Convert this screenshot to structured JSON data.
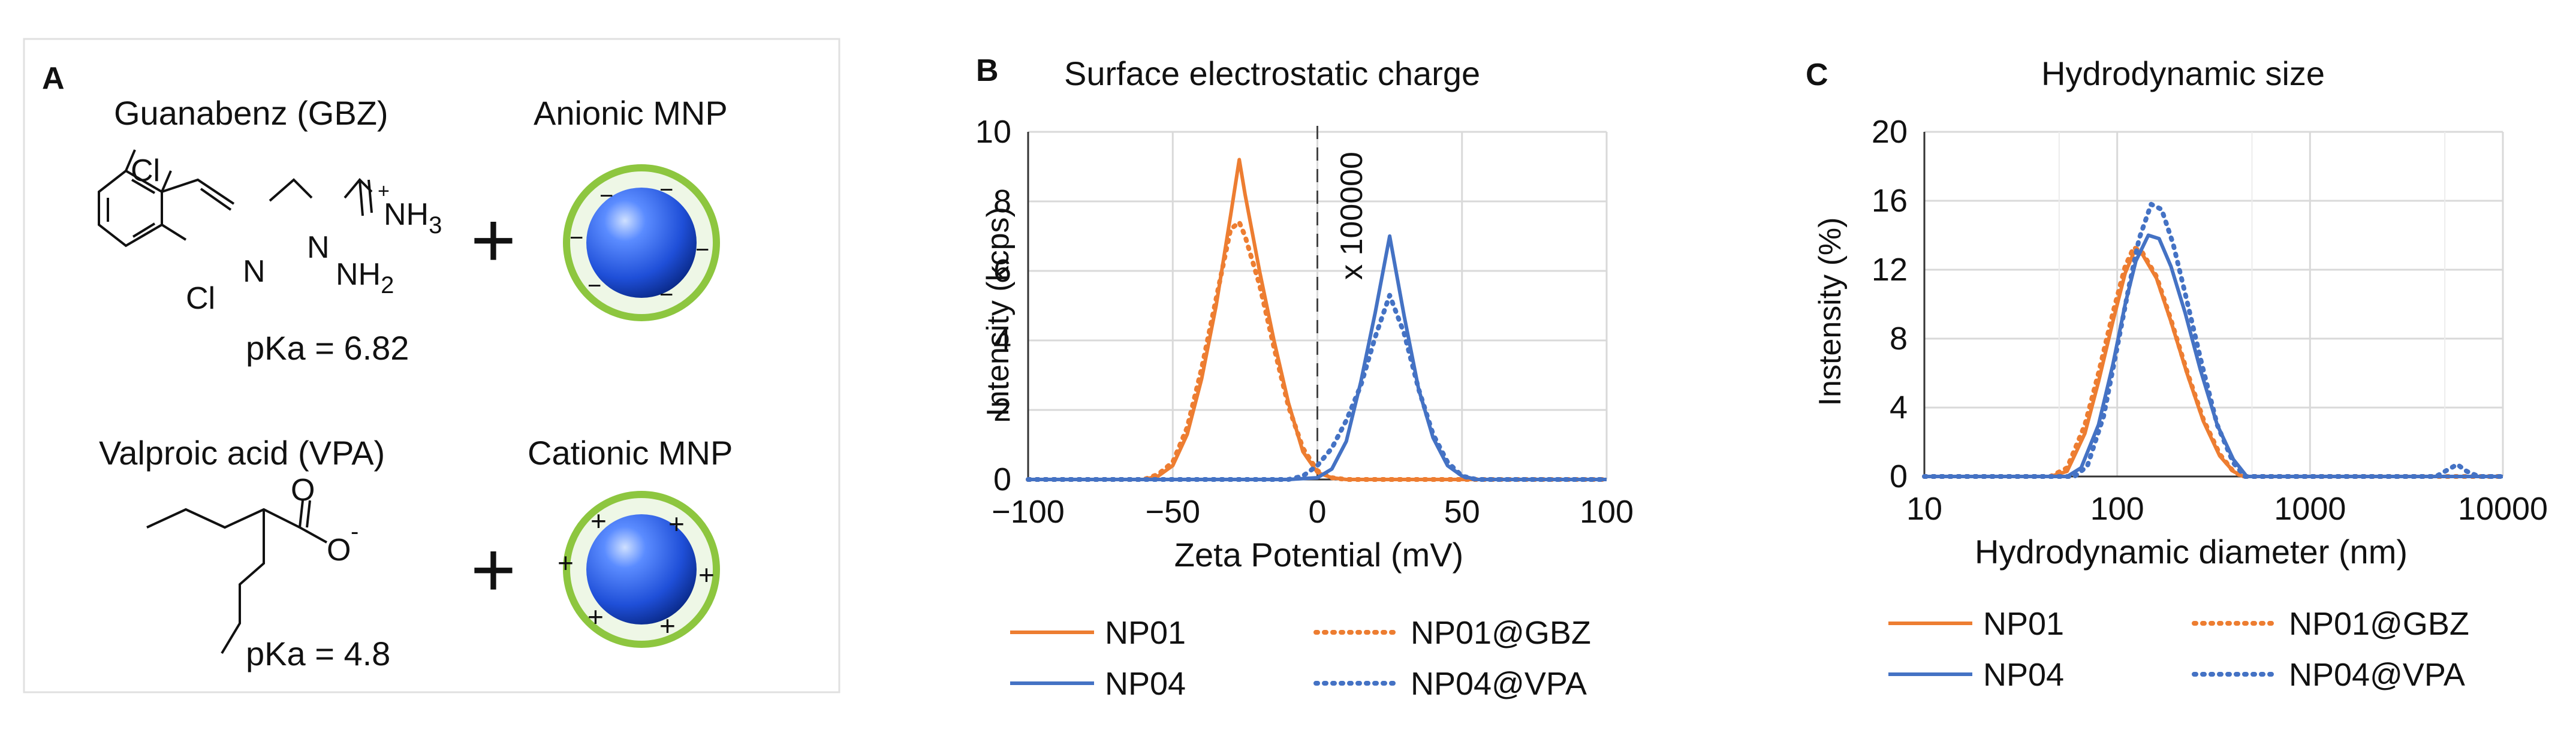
{
  "colors": {
    "orange": "#ED7D31",
    "blue": "#4472C4",
    "panel_border": "#e0e0e0",
    "shell_green": "#8dc63f",
    "shell_fill": "#eef7e6",
    "sphere_blue": "#1f4fd8"
  },
  "panel_a": {
    "label": "A",
    "gbz_title": "Guanabenz (GBZ)",
    "mnp_anionic_title": "Anionic MNP",
    "gbz_pka": "pKa = 6.82",
    "vpa_title": "Valproic acid (VPA)",
    "mnp_cationic_title": "Cationic MNP",
    "vpa_pka": "pKa = 4.8",
    "plus": "+",
    "cl1": "Cl",
    "cl2": "Cl",
    "n1": "N",
    "n2": "N",
    "nh3": "NH",
    "nh3_sub": "3",
    "nh3_charge": "+",
    "nh2": "NH",
    "nh2_sub": "2",
    "o_double": "O",
    "o_minus": "O",
    "o_charge": "-",
    "neg_charge": "−",
    "pos_charge": "+"
  },
  "chart_data": [
    {
      "panel": "B",
      "type": "line",
      "title": "Surface electrostatic charge",
      "xlabel": "Zeta Potential (mV)",
      "ylabel": "Intensity (kcps)",
      "annotation": "x 100000",
      "xlim": [
        -100,
        100
      ],
      "ylim": [
        0,
        10
      ],
      "xticks": [
        -100,
        -50,
        0,
        50,
        100
      ],
      "yticks": [
        0,
        2,
        4,
        6,
        8,
        10
      ],
      "grid": true,
      "legend_position": "bottom",
      "series": [
        {
          "name": "NP01",
          "color": "#ED7D31",
          "style": "solid",
          "x": [
            -100,
            -60,
            -55,
            -50,
            -45,
            -40,
            -35,
            -30,
            -27,
            -25,
            -20,
            -15,
            -10,
            -5,
            0,
            5,
            10,
            20,
            50,
            100
          ],
          "y": [
            0,
            0,
            0.1,
            0.4,
            1.3,
            2.9,
            5.0,
            7.6,
            9.2,
            8.2,
            6.0,
            4.0,
            2.2,
            0.8,
            0.2,
            0.05,
            0,
            0,
            0,
            0
          ]
        },
        {
          "name": "NP01@GBZ",
          "color": "#ED7D31",
          "style": "dotted",
          "x": [
            -100,
            -60,
            -55,
            -50,
            -45,
            -40,
            -35,
            -30,
            -27,
            -25,
            -20,
            -15,
            -10,
            -5,
            0,
            5,
            10,
            20,
            50,
            100
          ],
          "y": [
            0,
            0,
            0.15,
            0.5,
            1.5,
            3.2,
            5.2,
            7.2,
            7.4,
            7.0,
            5.6,
            3.8,
            2.1,
            0.9,
            0.25,
            0.05,
            0,
            0,
            0,
            0
          ]
        },
        {
          "name": "NP04",
          "color": "#4472C4",
          "style": "solid",
          "x": [
            -100,
            -10,
            0,
            5,
            10,
            15,
            20,
            25,
            30,
            35,
            40,
            45,
            50,
            55,
            100
          ],
          "y": [
            0,
            0,
            0.05,
            0.3,
            1.1,
            2.8,
            4.8,
            7.0,
            4.7,
            2.6,
            1.2,
            0.4,
            0.1,
            0,
            0
          ]
        },
        {
          "name": "NP04@VPA",
          "color": "#4472C4",
          "style": "dotted",
          "x": [
            -100,
            -10,
            -5,
            0,
            5,
            10,
            15,
            20,
            25,
            30,
            35,
            40,
            45,
            50,
            55,
            100
          ],
          "y": [
            0,
            0,
            0.1,
            0.4,
            0.9,
            1.7,
            2.7,
            4.1,
            5.3,
            4.2,
            2.6,
            1.3,
            0.5,
            0.1,
            0,
            0
          ]
        }
      ],
      "legend": [
        "NP01",
        "NP01@GBZ",
        "NP04",
        "NP04@VPA"
      ]
    },
    {
      "panel": "C",
      "type": "line",
      "title": "Hydrodynamic size",
      "xlabel": "Hydrodynamic diameter (nm)",
      "ylabel": "Instensity (%)",
      "xscale": "log",
      "xlim": [
        10,
        10000
      ],
      "ylim": [
        0,
        20
      ],
      "xticks": [
        10,
        100,
        1000,
        10000
      ],
      "yticks": [
        0,
        4,
        8,
        12,
        16,
        20
      ],
      "grid": true,
      "legend_position": "bottom",
      "series": [
        {
          "name": "NP01",
          "color": "#ED7D31",
          "style": "solid",
          "x": [
            10,
            45,
            55,
            68,
            80,
            95,
            110,
            122,
            135,
            160,
            190,
            230,
            280,
            340,
            400,
            450,
            10000
          ],
          "y": [
            0,
            0,
            0.3,
            2.5,
            5.5,
            9.0,
            11.8,
            13.0,
            12.9,
            11.5,
            9.0,
            6.0,
            3.2,
            1.2,
            0.3,
            0,
            0
          ]
        },
        {
          "name": "NP01@GBZ",
          "color": "#ED7D31",
          "style": "dotted",
          "x": [
            10,
            45,
            55,
            68,
            80,
            95,
            110,
            122,
            135,
            160,
            190,
            230,
            280,
            340,
            400,
            450,
            10000
          ],
          "y": [
            0,
            0,
            0.5,
            3.0,
            6.0,
            9.5,
            12.2,
            13.3,
            13.0,
            11.6,
            9.1,
            6.1,
            3.3,
            1.3,
            0.3,
            0,
            0
          ]
        },
        {
          "name": "NP04",
          "color": "#4472C4",
          "style": "solid",
          "x": [
            10,
            55,
            65,
            80,
            95,
            110,
            125,
            145,
            165,
            190,
            225,
            270,
            330,
            400,
            470,
            10000
          ],
          "y": [
            0,
            0,
            0.5,
            3.0,
            6.5,
            10.0,
            12.5,
            14.0,
            13.8,
            12.2,
            9.5,
            6.2,
            3.0,
            1.0,
            0,
            0
          ]
        },
        {
          "name": "NP04@VPA",
          "color": "#4472C4",
          "style": "dotted",
          "x": [
            10,
            60,
            70,
            85,
            100,
            115,
            130,
            150,
            170,
            195,
            230,
            275,
            330,
            400,
            460,
            4500,
            5200,
            5800,
            6500,
            7500,
            10000
          ],
          "y": [
            0,
            0,
            0.6,
            3.5,
            7.5,
            11.0,
            13.8,
            15.8,
            15.5,
            13.5,
            10.2,
            6.5,
            3.0,
            0.8,
            0,
            0,
            0.4,
            0.7,
            0.3,
            0,
            0
          ]
        }
      ],
      "legend": [
        "NP01",
        "NP01@GBZ",
        "NP04",
        "NP04@VPA"
      ]
    }
  ],
  "panel_b": {
    "label": "B",
    "title": "Surface electrostatic charge",
    "xlabel": "Zeta Potential (mV)",
    "ylabel": "Intensity (kcps)",
    "annotation": "x 100000",
    "xtick_labels": [
      "−100",
      "−50",
      "0",
      "50",
      "100"
    ],
    "ytick_labels": [
      "0",
      "2",
      "4",
      "6",
      "8",
      "10"
    ],
    "legend": [
      "NP01",
      "NP01@GBZ",
      "NP04",
      "NP04@VPA"
    ]
  },
  "panel_c": {
    "label": "C",
    "title": "Hydrodynamic size",
    "xlabel": "Hydrodynamic diameter (nm)",
    "ylabel": "Instensity (%)",
    "xtick_labels": [
      "10",
      "100",
      "1000",
      "10000"
    ],
    "ytick_labels": [
      "0",
      "4",
      "8",
      "12",
      "16",
      "20"
    ],
    "legend": [
      "NP01",
      "NP01@GBZ",
      "NP04",
      "NP04@VPA"
    ]
  }
}
